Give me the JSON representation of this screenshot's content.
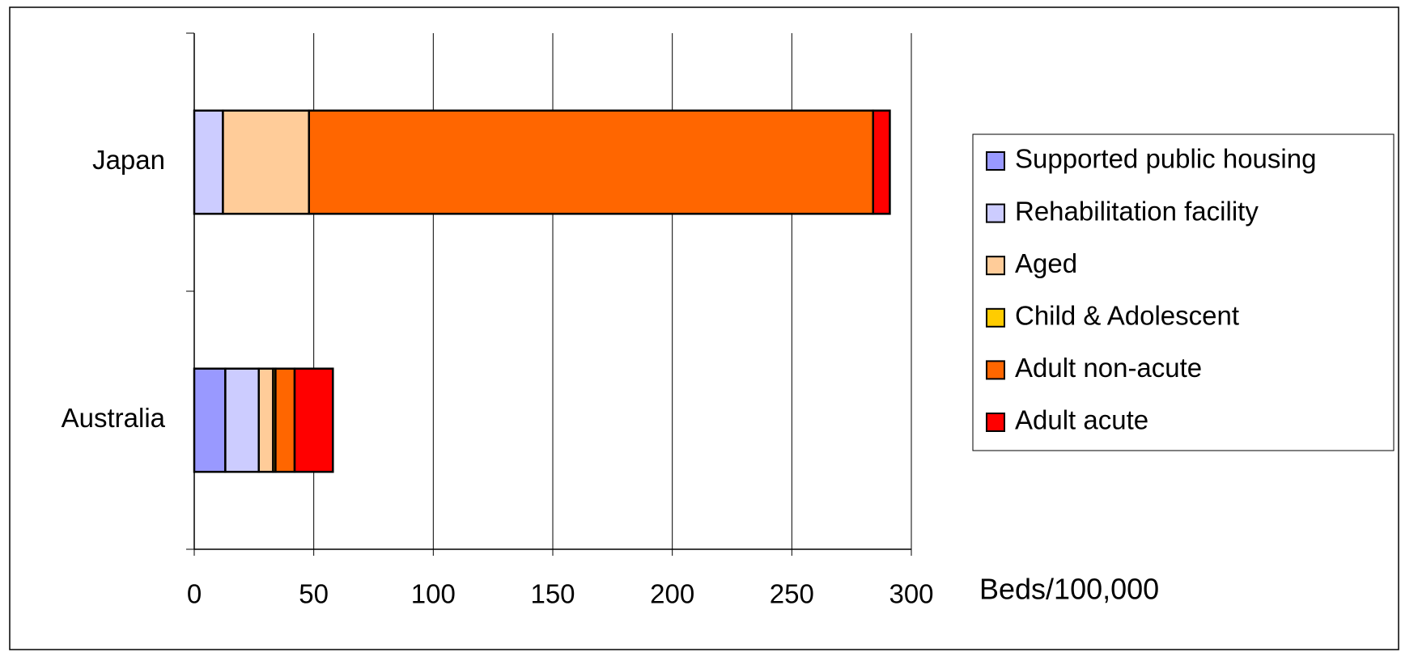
{
  "chart_data": {
    "type": "stacked-bar-horizontal",
    "categories": [
      "Japan",
      "Australia"
    ],
    "series": [
      {
        "name": "Supported public housing",
        "color": "#9999ff",
        "values": [
          0,
          13
        ]
      },
      {
        "name": "Rehabilitation facility",
        "color": "#ccccff",
        "values": [
          12,
          14
        ]
      },
      {
        "name": "Aged",
        "color": "#ffcc99",
        "values": [
          36,
          6
        ]
      },
      {
        "name": "Child & Adolescent",
        "color": "#ffcc00",
        "values": [
          0,
          1
        ]
      },
      {
        "name": "Adult non-acute",
        "color": "#ff6600",
        "values": [
          236,
          8
        ]
      },
      {
        "name": "Adult acute",
        "color": "#ff0000",
        "values": [
          7,
          16
        ]
      }
    ],
    "xlabel": "Beds/100,000",
    "xlim": [
      0,
      300
    ],
    "xticks": [
      0,
      50,
      100,
      150,
      200,
      250,
      300
    ],
    "grid": true,
    "legend": "right"
  }
}
